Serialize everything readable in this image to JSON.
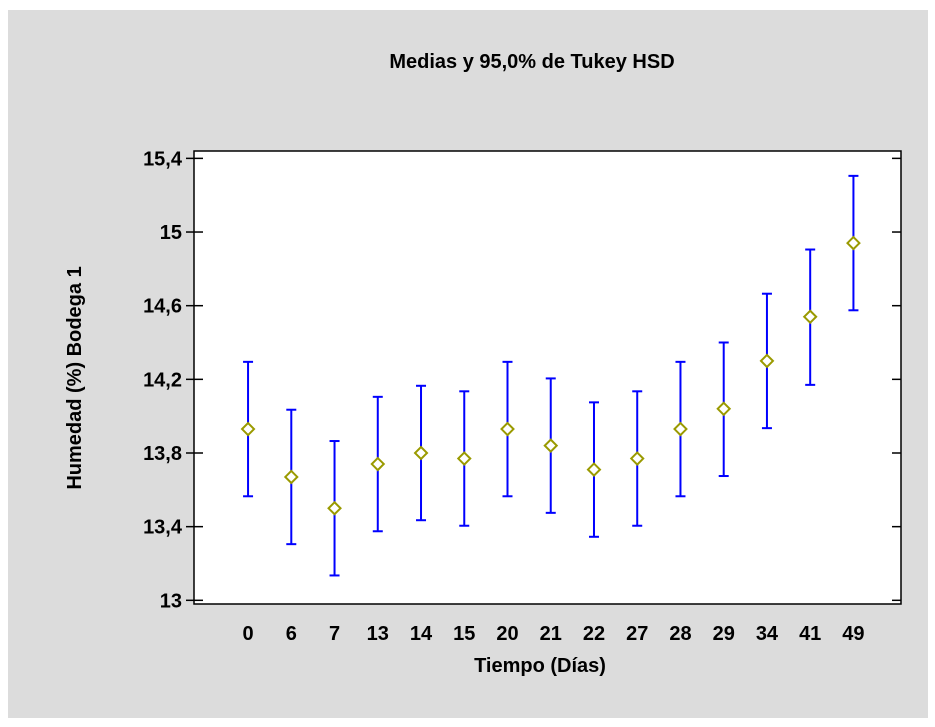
{
  "chart_data": {
    "type": "scatter",
    "title": "Medias y 95,0% de Tukey HSD",
    "xlabel": "Tiempo (Días)",
    "ylabel": "Humedad (%) Bodega 1",
    "categories": [
      "0",
      "6",
      "7",
      "13",
      "14",
      "15",
      "20",
      "21",
      "22",
      "27",
      "28",
      "29",
      "34",
      "41",
      "49"
    ],
    "means": [
      13.93,
      13.67,
      13.5,
      13.74,
      13.8,
      13.77,
      13.93,
      13.84,
      13.71,
      13.77,
      13.93,
      14.04,
      14.3,
      14.54,
      14.94
    ],
    "lower": [
      13.565,
      13.305,
      13.135,
      13.375,
      13.435,
      13.405,
      13.565,
      13.475,
      13.345,
      13.405,
      13.565,
      13.675,
      13.935,
      14.17,
      14.575
    ],
    "upper": [
      14.295,
      14.035,
      13.865,
      14.105,
      14.165,
      14.135,
      14.295,
      14.205,
      14.075,
      14.135,
      14.295,
      14.4,
      14.665,
      14.905,
      15.305
    ],
    "yticks": [
      13,
      13.4,
      13.8,
      14.2,
      14.6,
      15,
      15.4
    ],
    "ytick_labels": [
      "13",
      "13,4",
      "13,8",
      "14,2",
      "14,6",
      "15",
      "15,4"
    ],
    "ylim": [
      12.98,
      15.44
    ],
    "grid": false,
    "colors": {
      "interval": "#0000ff",
      "marker": "#9a9a00",
      "background": "#dcdcdc",
      "plot_area": "#ffffff"
    }
  }
}
